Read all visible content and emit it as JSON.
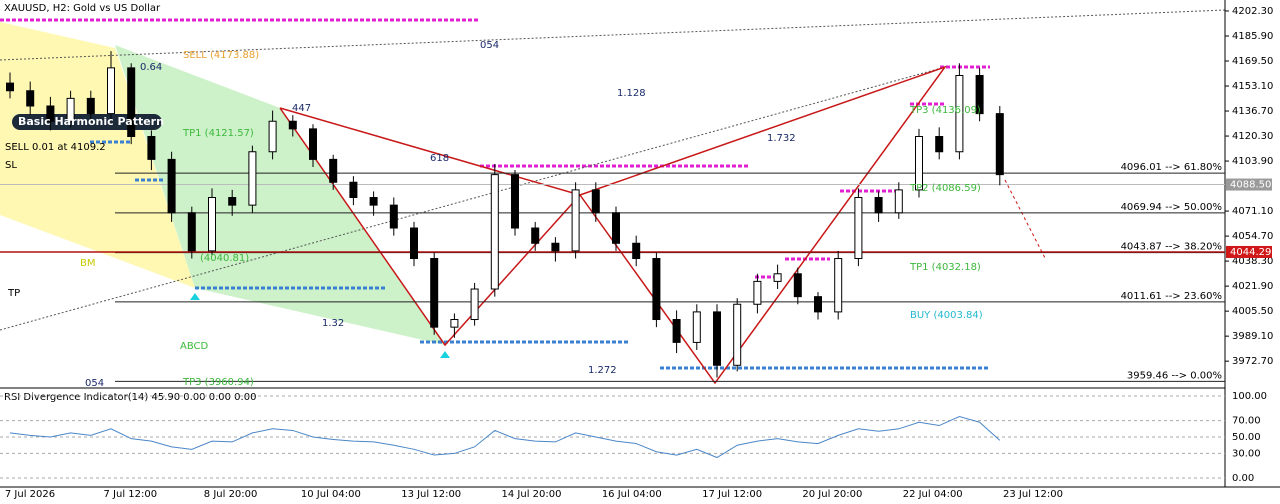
{
  "chart_data": [
    {
      "type": "candlestick",
      "title": "XAUUSD, H2:  Gold vs US Dollar",
      "open": [
        4155,
        4150,
        4140,
        4130,
        4145,
        4135,
        4165,
        4120,
        4105,
        4070,
        4045,
        4080,
        4075,
        4110,
        4130,
        4125,
        4105,
        4090,
        4080,
        4075,
        4060,
        4040,
        3995,
        4000,
        4020,
        4095,
        4060,
        4050,
        4045,
        4085,
        4070,
        4050,
        4040,
        4000,
        3985,
        4005,
        3970,
        4010,
        4025,
        4030,
        4015,
        4005,
        4040,
        4080,
        4070,
        4085,
        4120,
        4110,
        4160,
        4135
      ],
      "high": [
        4162,
        4156,
        4146,
        4150,
        4150,
        4176,
        4168,
        4124,
        4110,
        4074,
        4086,
        4085,
        4114,
        4137,
        4134,
        4128,
        4108,
        4094,
        4084,
        4080,
        4064,
        4044,
        4004,
        4024,
        4102,
        4098,
        4064,
        4054,
        4090,
        4090,
        4074,
        4055,
        4044,
        4006,
        4010,
        4010,
        4014,
        4030,
        4036,
        4034,
        4018,
        4045,
        4086,
        4084,
        4090,
        4125,
        4126,
        4168,
        4165,
        4140
      ],
      "low": [
        4145,
        4134,
        4124,
        4126,
        4130,
        4130,
        4115,
        4098,
        4064,
        4040,
        4042,
        4068,
        4070,
        4105,
        4120,
        4100,
        4085,
        4075,
        4068,
        4055,
        4035,
        3990,
        3988,
        3996,
        4015,
        4055,
        4045,
        4038,
        4040,
        4064,
        4045,
        4035,
        3995,
        3978,
        3980,
        3962,
        3966,
        4004,
        4020,
        4010,
        4000,
        4000,
        4035,
        4064,
        4066,
        4080,
        4105,
        4105,
        4130,
        4088
      ],
      "close": [
        4150,
        4140,
        4130,
        4145,
        4135,
        4165,
        4120,
        4105,
        4070,
        4045,
        4080,
        4075,
        4110,
        4130,
        4125,
        4105,
        4090,
        4080,
        4075,
        4060,
        4040,
        3995,
        4000,
        4020,
        4095,
        4060,
        4050,
        4045,
        4085,
        4070,
        4050,
        4040,
        4000,
        3985,
        4005,
        3970,
        4010,
        4025,
        4030,
        4015,
        4005,
        4040,
        4080,
        4070,
        4085,
        4120,
        4110,
        4160,
        4135,
        4095
      ],
      "ylim": [
        3955.1,
        4209.5
      ],
      "yticks": [
        {
          "value": 4202.3,
          "label": "4202.30"
        },
        {
          "value": 4185.9,
          "label": "4185.90"
        },
        {
          "value": 4169.5,
          "label": "4169.50"
        },
        {
          "value": 4153.1,
          "label": "4153.10"
        },
        {
          "value": 4136.7,
          "label": "4136.70"
        },
        {
          "value": 4120.3,
          "label": "4120.30"
        },
        {
          "value": 4103.9,
          "label": "4103.90"
        },
        {
          "value": 4071.1,
          "label": "4071.10"
        },
        {
          "value": 4054.7,
          "label": "4054.70"
        },
        {
          "value": 4038.3,
          "label": "4038.30"
        },
        {
          "value": 4021.9,
          "label": "4021.90"
        },
        {
          "value": 4005.5,
          "label": "4005.50"
        },
        {
          "value": 3989.1,
          "label": "3989.10"
        },
        {
          "value": 3972.7,
          "label": "3972.70"
        }
      ],
      "current_price": {
        "value": 4088.5,
        "label": "4088.50"
      },
      "red_price": {
        "value": 4044.29,
        "label": "4044.29"
      },
      "fib_levels": [
        {
          "value": 4096.01,
          "label": "4096.01 --> 61.80%"
        },
        {
          "value": 4069.94,
          "label": "4069.94 --> 50.00%"
        },
        {
          "value": 4043.87,
          "label": "4043.87 --> 38.20%"
        },
        {
          "value": 4011.61,
          "label": "4011.61 --> 23.60%"
        },
        {
          "value": 3959.46,
          "label": "3959.46 --> 0.00%"
        }
      ],
      "annotations": [
        "SELL (4173.88)",
        "TP1 (4121.57)",
        "SELL 0.01 at 4109.2",
        "SL",
        "BM",
        "TP",
        "ABCD",
        "TP3 (3960.94)",
        "1.32",
        "054",
        "054",
        "0.64",
        "1.128",
        "1.732",
        "618",
        "447",
        "1.272",
        "TP2 (4086.59)",
        "TP1 (4032.18)",
        "BUY (4003.84)",
        "TP3 (4136.09)",
        "(4040.81)",
        "Basic Harmonic Pattern"
      ],
      "time_labels": [
        "7 Jul 2026",
        "7 Jul 12:00",
        "8 Jul 20:00",
        "10 Jul 04:00",
        "13 Jul 12:00",
        "14 Jul 20:00",
        "16 Jul 04:00",
        "17 Jul 12:00",
        "20 Jul 20:00",
        "22 Jul 04:00",
        "23 Jul 12:00"
      ]
    },
    {
      "type": "line",
      "title": "RSI Divergence Indicator(14) 45.90 0.00 0.00 0.00",
      "color": "#4a86c8",
      "values": [
        55,
        52,
        50,
        55,
        52,
        60,
        48,
        45,
        38,
        35,
        45,
        44,
        55,
        60,
        58,
        50,
        47,
        45,
        44,
        40,
        35,
        28,
        30,
        38,
        58,
        48,
        45,
        44,
        55,
        50,
        45,
        42,
        32,
        28,
        35,
        25,
        40,
        45,
        48,
        44,
        42,
        52,
        60,
        57,
        60,
        68,
        64,
        75,
        68,
        45.9
      ],
      "ylim": [
        -8.5,
        107.3
      ],
      "yticks": [
        {
          "value": 100,
          "label": "100.00"
        },
        {
          "value": 70,
          "label": "70.00"
        },
        {
          "value": 50,
          "label": "50.00"
        },
        {
          "value": 30,
          "label": "30.00"
        },
        {
          "value": 0,
          "label": "0.00"
        }
      ]
    }
  ]
}
